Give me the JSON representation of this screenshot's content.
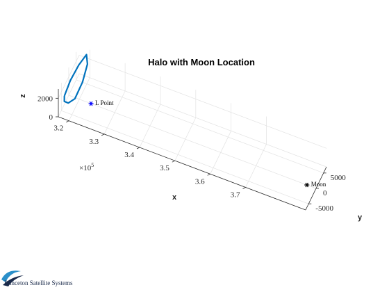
{
  "chart_data": {
    "type": "line3d",
    "title": "Halo with Moon Location",
    "xlabel": "x",
    "ylabel": "y",
    "zlabel": "z",
    "x_exponent_label": "×10",
    "x_exponent_power": "5",
    "x_ticks": [
      "3.2",
      "3.3",
      "3.4",
      "3.5",
      "3.6",
      "3.7"
    ],
    "y_ticks": [
      "-5000",
      "0",
      "5000"
    ],
    "z_ticks": [
      "0",
      "2000"
    ],
    "xlim": [
      317000,
      387000
    ],
    "ylim": [
      -7000,
      7000
    ],
    "zlim": [
      0,
      3000
    ],
    "grid": true,
    "series": [
      {
        "kind": "line",
        "color": "#0072BD",
        "x": [
          318500,
          318300,
          318800,
          319700,
          320400,
          320600,
          320200,
          319400,
          318700,
          318500
        ],
        "y": [
          -6500,
          -2000,
          2500,
          5500,
          4500,
          700,
          -3500,
          -6000,
          -7000,
          -6500
        ],
        "z": [
          2300,
          2450,
          2700,
          2950,
          2350,
          1700,
          1250,
          1500,
          1900,
          2300
        ]
      }
    ],
    "markers": [
      {
        "label": "L Point",
        "x": 323300,
        "y": 0,
        "z": 0,
        "color": "#0000FF"
      },
      {
        "label": "Moon",
        "x": 384400,
        "y": 0,
        "z": 0,
        "color": "#000000"
      }
    ]
  },
  "logo": {
    "text": "Princeton Satellite Systems",
    "accent_color": "#2a8fc9"
  }
}
